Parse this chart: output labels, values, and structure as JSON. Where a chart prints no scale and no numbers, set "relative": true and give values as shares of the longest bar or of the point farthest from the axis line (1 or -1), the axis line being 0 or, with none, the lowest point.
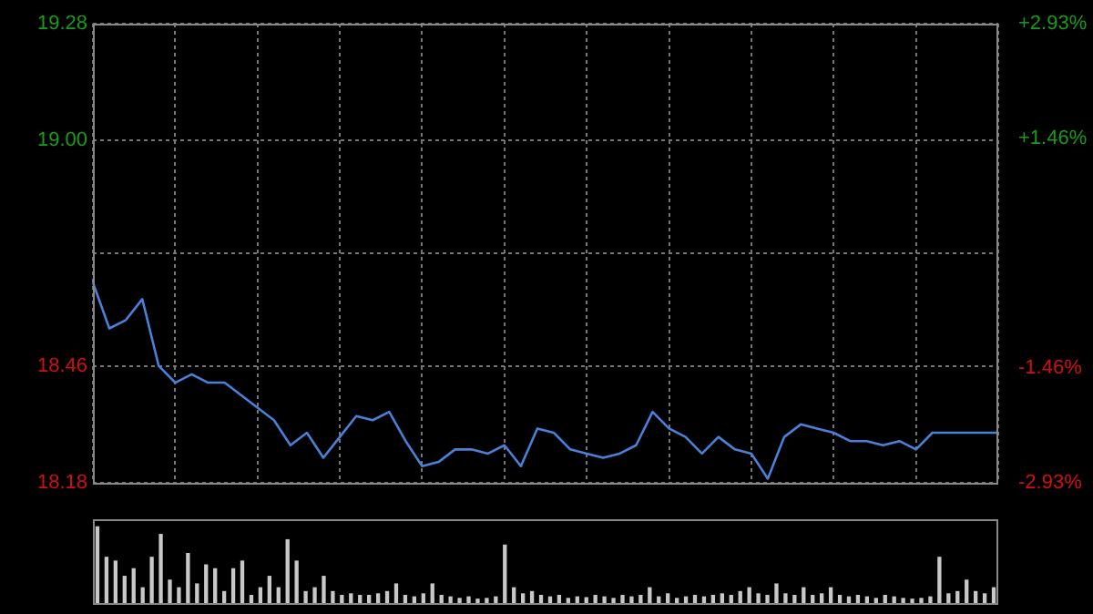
{
  "chart_data": [
    {
      "type": "line",
      "color": "#4a80d8",
      "grid": true,
      "tick_labels": "y",
      "marker": "none",
      "categories": [
        null,
        null,
        null,
        null,
        null,
        null,
        null,
        null,
        null,
        null,
        null,
        null,
        null,
        null,
        null,
        null,
        null,
        null,
        null,
        null,
        null,
        null,
        null,
        null,
        null,
        null,
        null,
        null,
        null,
        null,
        null,
        null,
        null,
        null,
        null,
        null,
        null,
        null,
        null,
        null,
        null,
        null,
        null,
        null,
        null,
        null,
        null,
        null,
        null,
        null,
        null,
        null,
        null,
        null,
        null,
        null
      ],
      "values": [
        18.66,
        18.55,
        18.57,
        18.62,
        18.46,
        18.42,
        18.44,
        18.42,
        18.42,
        18.39,
        18.36,
        18.33,
        18.27,
        18.3,
        18.24,
        18.29,
        18.34,
        18.33,
        18.35,
        18.28,
        18.22,
        18.23,
        18.26,
        18.26,
        18.25,
        18.27,
        18.22,
        18.31,
        18.3,
        18.26,
        18.25,
        18.24,
        18.25,
        18.27,
        18.35,
        18.31,
        18.29,
        18.25,
        18.29,
        18.26,
        18.25,
        18.19,
        18.29,
        18.32,
        18.31,
        18.3,
        18.28,
        18.28,
        18.27,
        18.28,
        18.26,
        18.3,
        18.3,
        18.3,
        18.3,
        18.3
      ],
      "ylim": [
        18.18,
        19.28
      ],
      "yticks": [
        18.18,
        18.46,
        {
          "value": 18.73,
          "label": null
        },
        {
          "value": 19,
          "label": "19.00"
        },
        19.28
      ],
      "y2lim": [
        -2.93,
        2.93
      ],
      "y2ticks": [
        {
          "value": -2.93,
          "label": "-2.93%"
        },
        {
          "value": -1.46,
          "label": "-1.46%"
        },
        {
          "value": 1.46,
          "label": "+1.46%"
        },
        {
          "value": 2.93,
          "label": "+2.93%"
        }
      ]
    },
    {
      "type": "bar",
      "relative": true,
      "color": "#c8c8c8",
      "categories": [
        null,
        null,
        null,
        null,
        null,
        null,
        null,
        null,
        null,
        null,
        null,
        null,
        null,
        null,
        null,
        null,
        null,
        null,
        null,
        null,
        null,
        null,
        null,
        null,
        null,
        null,
        null,
        null,
        null,
        null,
        null,
        null,
        null,
        null,
        null,
        null,
        null,
        null,
        null,
        null,
        null,
        null,
        null,
        null,
        null,
        null,
        null,
        null,
        null,
        null,
        null,
        null,
        null,
        null,
        null,
        null,
        null,
        null,
        null,
        null,
        null,
        null,
        null,
        null,
        null,
        null,
        null,
        null,
        null,
        null,
        null,
        null,
        null,
        null,
        null,
        null,
        null,
        null,
        null,
        null,
        null,
        null,
        null,
        null,
        null,
        null,
        null,
        null,
        null,
        null,
        null,
        null,
        null,
        null,
        null,
        null,
        null,
        null,
        null,
        null
      ],
      "values": [
        1.0,
        0.6,
        0.55,
        0.35,
        0.45,
        0.2,
        0.6,
        0.9,
        0.3,
        0.2,
        0.65,
        0.25,
        0.5,
        0.45,
        0.15,
        0.45,
        0.55,
        0.1,
        0.2,
        0.35,
        0.2,
        0.83,
        0.55,
        0.15,
        0.2,
        0.35,
        0.15,
        0.1,
        0.12,
        0.1,
        0.1,
        0.12,
        0.15,
        0.25,
        0.1,
        0.08,
        0.12,
        0.25,
        0.1,
        0.08,
        0.06,
        0.08,
        0.05,
        0.06,
        0.08,
        0.76,
        0.2,
        0.12,
        0.15,
        0.1,
        0.08,
        0.1,
        0.06,
        0.08,
        0.07,
        0.1,
        0.08,
        0.06,
        0.1,
        0.08,
        0.1,
        0.2,
        0.08,
        0.12,
        0.06,
        0.08,
        0.1,
        0.08,
        0.1,
        0.12,
        0.1,
        0.15,
        0.2,
        0.12,
        0.1,
        0.25,
        0.12,
        0.1,
        0.2,
        0.1,
        0.12,
        0.2,
        0.1,
        0.08,
        0.1,
        0.08,
        0.06,
        0.1,
        0.08,
        0.06,
        0.05,
        0.06,
        0.08,
        0.6,
        0.12,
        0.15,
        0.3,
        0.15,
        0.12,
        0.2
      ]
    }
  ]
}
